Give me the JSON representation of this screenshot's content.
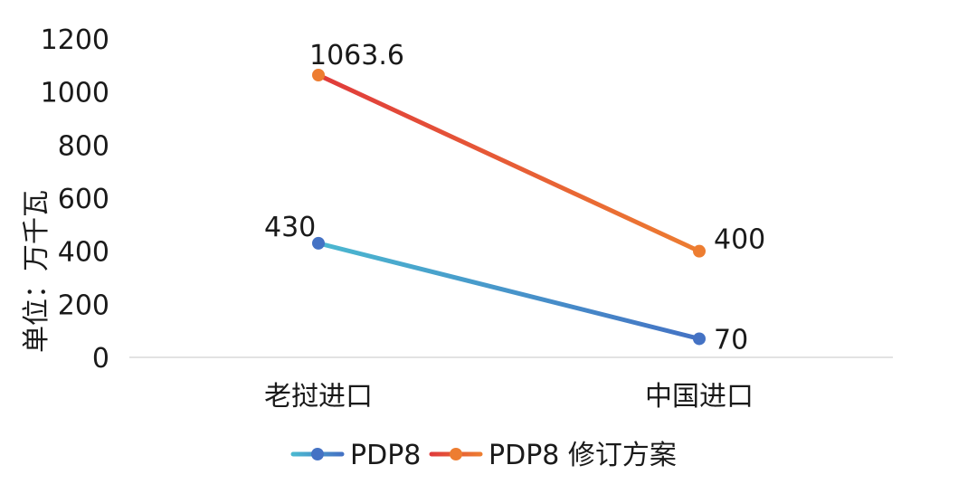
{
  "chart_data": {
    "type": "line",
    "categories": [
      "老挝进口",
      "中国进口"
    ],
    "series": [
      {
        "name": "PDP8",
        "values": [
          430,
          70
        ],
        "data_labels": [
          "430",
          "70"
        ],
        "color_start": "#4bb8d0",
        "color_end": "#4472c4",
        "marker_colors": [
          "#4472c4",
          "#4472c4"
        ]
      },
      {
        "name": "PDP8 修订方案",
        "values": [
          1063.6,
          400
        ],
        "data_labels": [
          "1063.6",
          "400"
        ],
        "color_start": "#e03b3b",
        "color_end": "#ed7d31",
        "marker_colors": [
          "#ed7d31",
          "#ed7d31"
        ]
      }
    ],
    "ylabel": "单位：万千瓦",
    "ylim": [
      0,
      1200
    ],
    "yticks": [
      0,
      200,
      400,
      600,
      800,
      1000,
      1200
    ],
    "ytick_labels": [
      "0",
      "200",
      "400",
      "600",
      "800",
      "1000",
      "1200"
    ],
    "grid": false,
    "legend_position": "bottom",
    "axis_line_color": "#d9d9d9"
  }
}
